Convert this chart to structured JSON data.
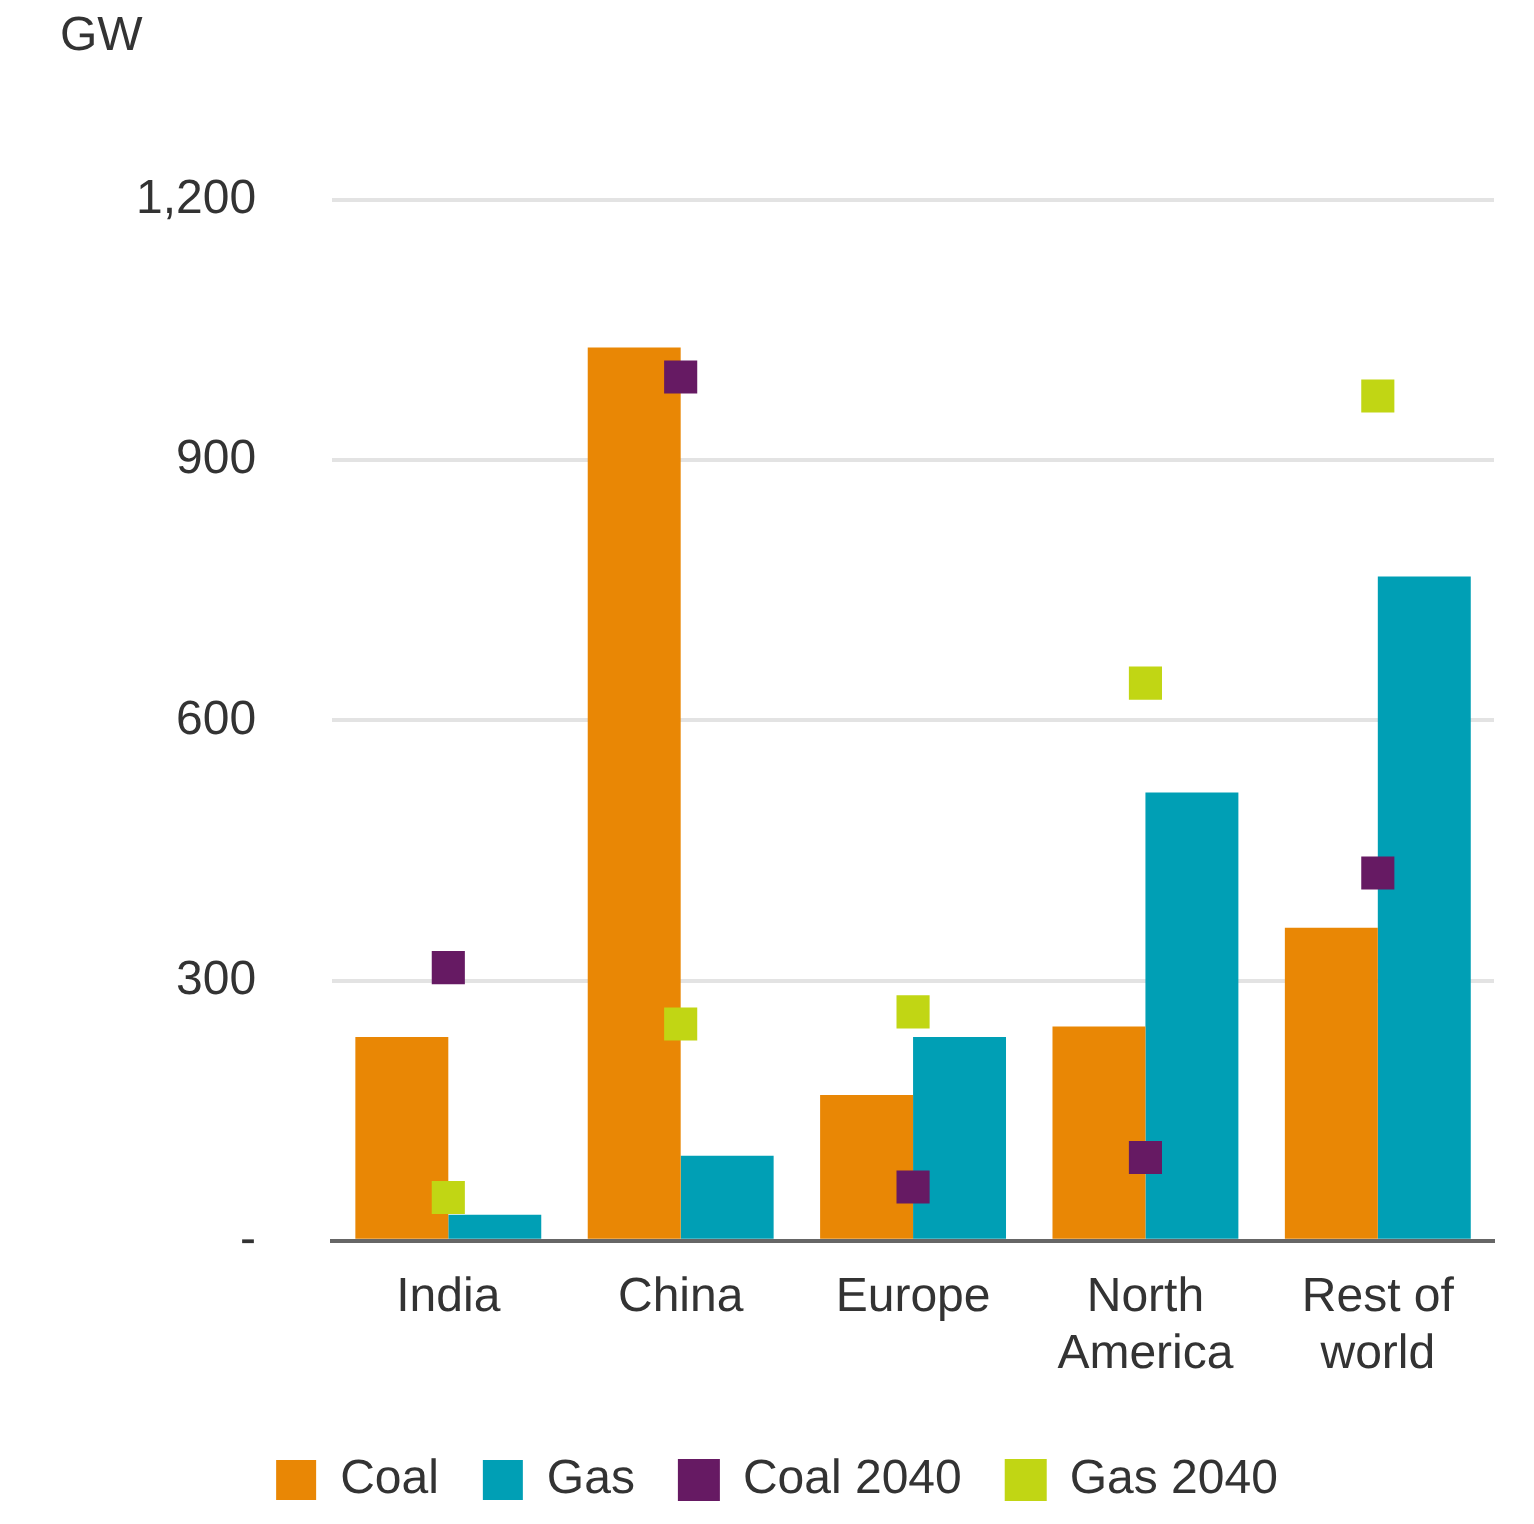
{
  "chart_data": {
    "type": "bar",
    "ylabel": "GW",
    "categories": [
      "India",
      "China",
      "Europe",
      "North America",
      "Rest of world"
    ],
    "series": [
      {
        "name": "Coal",
        "color": "#e98705",
        "values": [
          235,
          1030,
          168,
          247,
          361
        ]
      },
      {
        "name": "Gas",
        "color": "#009fb5",
        "values": [
          30,
          98,
          235,
          517,
          766
        ]
      },
      {
        "name": "Coal 2040",
        "type": "scatter",
        "color": "#661a63",
        "values": [
          315,
          996,
          62,
          96,
          424
        ]
      },
      {
        "name": "Gas 2040",
        "type": "scatter",
        "color": "#c1d614",
        "values": [
          50,
          250,
          264,
          643,
          974
        ]
      }
    ],
    "ylim": [
      0,
      1200
    ],
    "yticks": [
      {
        "value": 0,
        "label": "-"
      },
      300,
      600,
      900,
      {
        "value": 1200,
        "label": "1,200"
      }
    ],
    "grid": "y",
    "legend": "bottom",
    "marker": "square"
  }
}
